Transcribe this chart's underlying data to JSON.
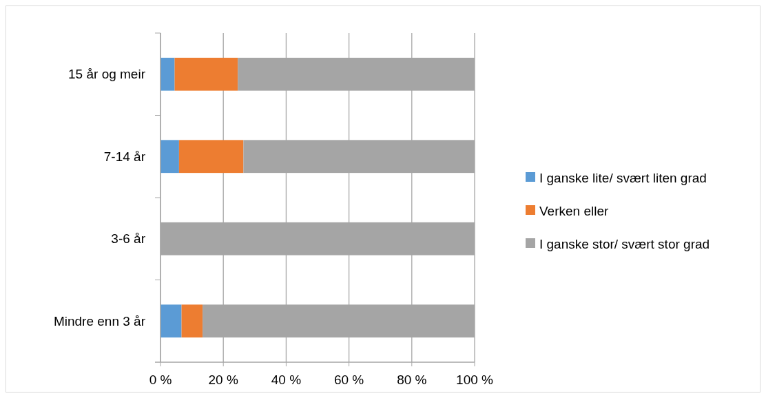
{
  "chart_data": {
    "type": "bar",
    "orientation": "horizontal",
    "stacked": true,
    "categories": [
      "15 år og meir",
      "7-14 år",
      "3-6 år",
      "Mindre enn 3 år"
    ],
    "series": [
      {
        "name": "I ganske lite/ svært liten grad",
        "color": "#5b9bd5",
        "values": [
          4.5,
          5.9,
          0,
          6.7
        ]
      },
      {
        "name": "Verken eller",
        "color": "#ed7d31",
        "values": [
          20.1,
          20.5,
          0,
          6.7
        ]
      },
      {
        "name": "I ganske stor/ svært stor grad",
        "color": "#a5a5a5",
        "values": [
          75.4,
          73.6,
          100,
          86.6
        ]
      }
    ],
    "xlim": [
      0,
      100
    ],
    "xticks": [
      {
        "value": 0,
        "label": "0 %"
      },
      {
        "value": 20,
        "label": "20 %"
      },
      {
        "value": 40,
        "label": "40 %"
      },
      {
        "value": 60,
        "label": "60 %"
      },
      {
        "value": 80,
        "label": "80 %"
      },
      {
        "value": 100,
        "label": "100 %"
      }
    ],
    "grid": "x",
    "legend": "right"
  }
}
